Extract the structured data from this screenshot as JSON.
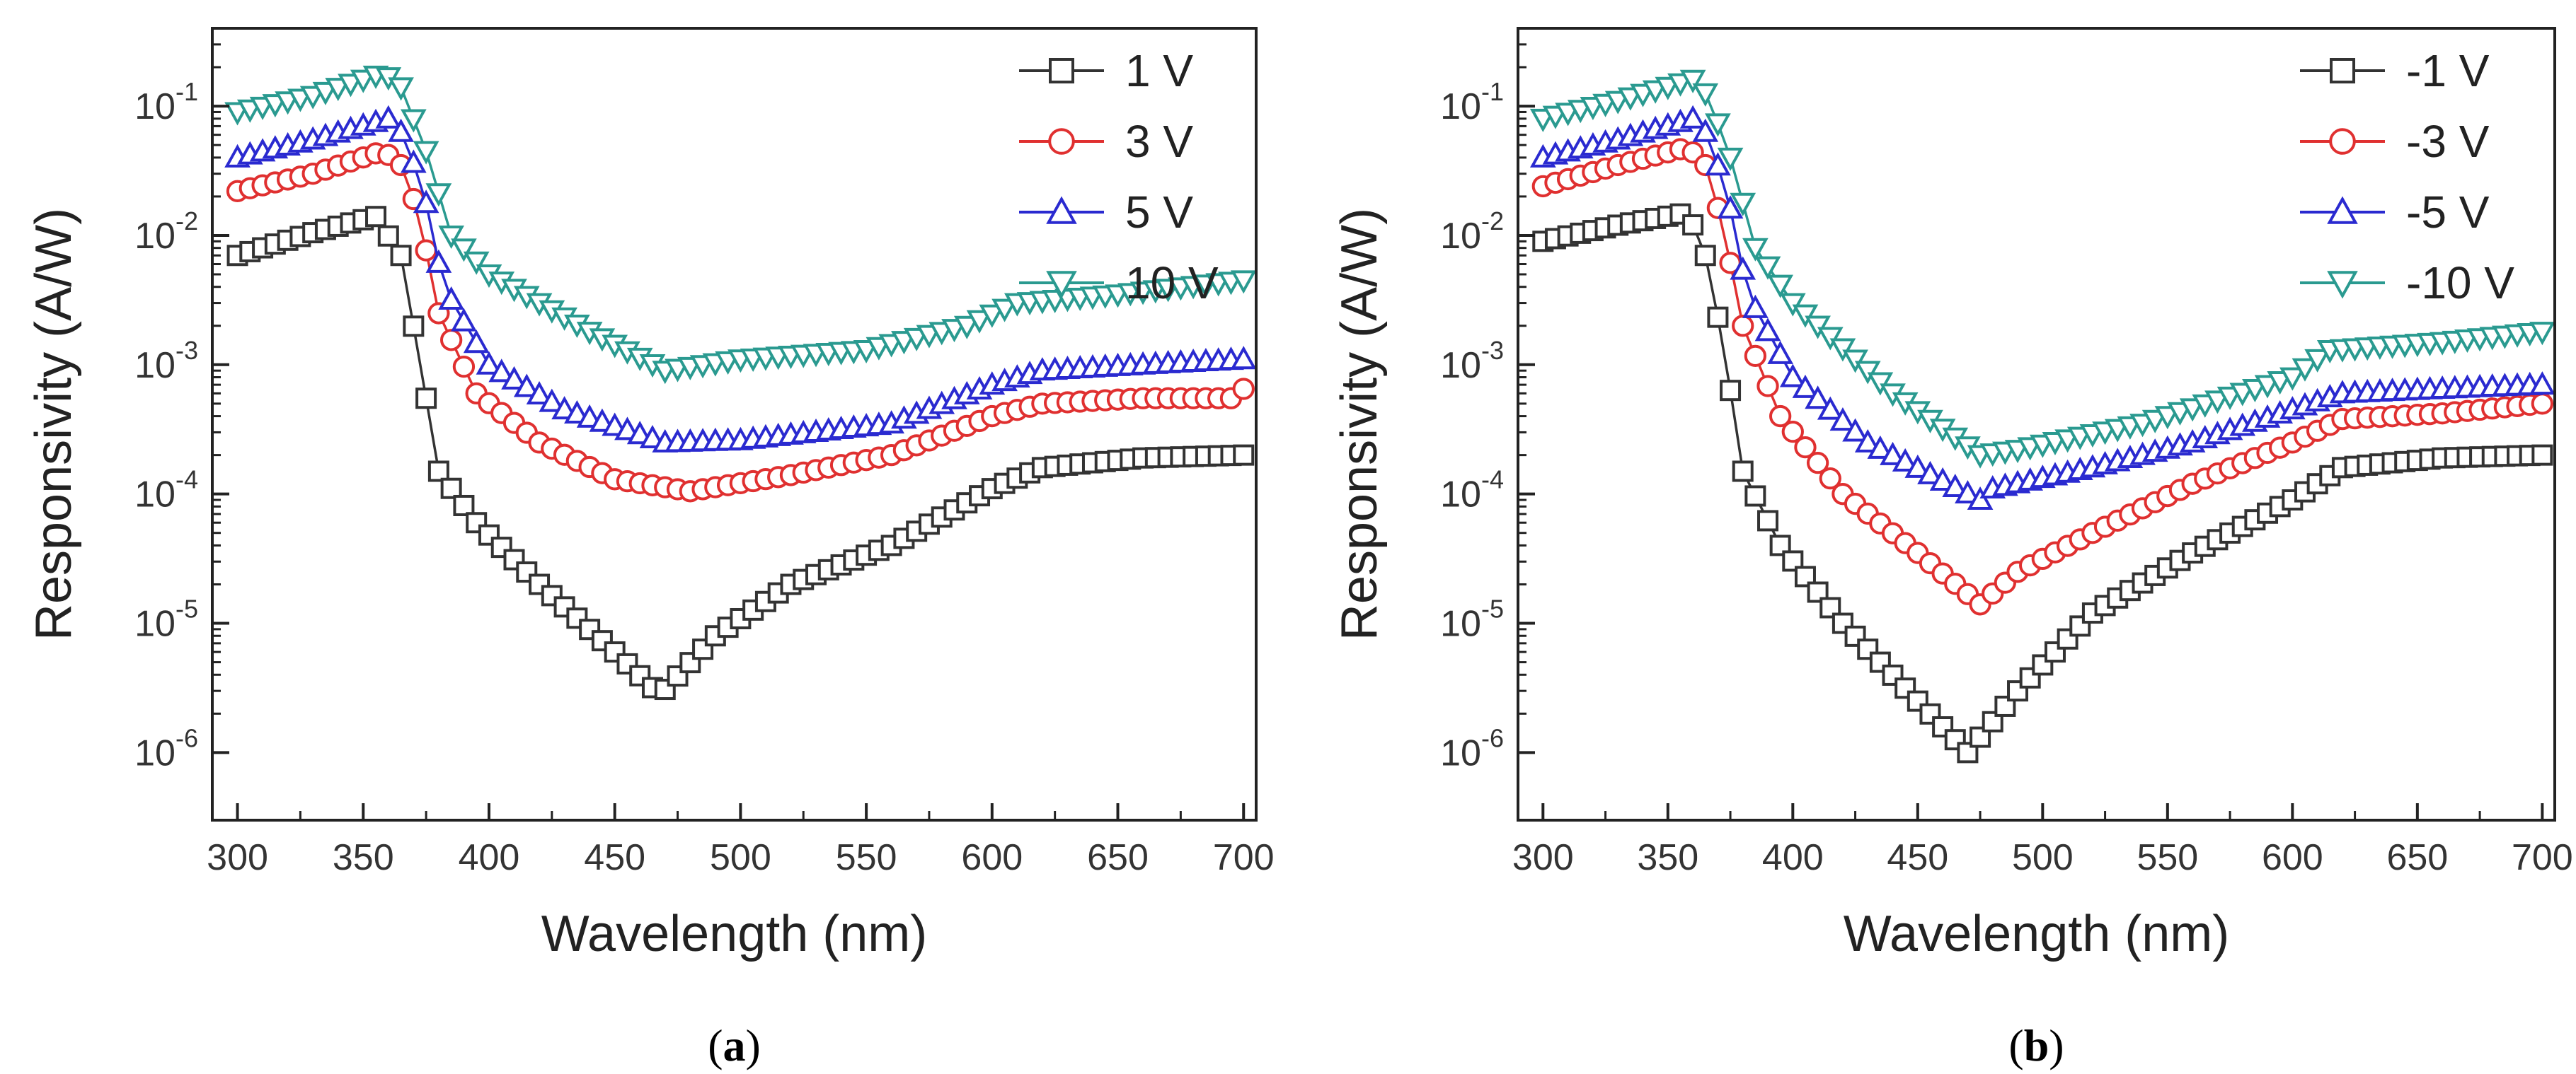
{
  "chart_data": [
    {
      "type": "line",
      "panel_label": "a",
      "xlabel": "Wavelength (nm)",
      "ylabel": "Responsivity (A/W)",
      "yscale": "log",
      "xlim": [
        290,
        705
      ],
      "ylim": [
        3e-07,
        0.4
      ],
      "xticks": [
        "300",
        "350",
        "400",
        "450",
        "500",
        "550",
        "600",
        "650",
        "700"
      ],
      "yticks": [
        {
          "value": 1e-06,
          "mant": "10",
          "exp": "-6"
        },
        {
          "value": 1e-05,
          "mant": "10",
          "exp": "-5"
        },
        {
          "value": 0.0001,
          "mant": "10",
          "exp": "-4"
        },
        {
          "value": 0.001,
          "mant": "10",
          "exp": "-3"
        },
        {
          "value": 0.01,
          "mant": "10",
          "exp": "-2"
        },
        {
          "value": 0.1,
          "mant": "10",
          "exp": "-1"
        }
      ],
      "legend_position": "top-right",
      "series": [
        {
          "name": "1 V",
          "color": "#333333",
          "marker": "square",
          "x": [
            300,
            330,
            355,
            365,
            372,
            380,
            395,
            420,
            450,
            468,
            490,
            520,
            560,
            600,
            620,
            660,
            700
          ],
          "y": [
            0.007,
            0.0105,
            0.014,
            0.007,
            0.0012,
            0.00015,
            6e-05,
            2e-05,
            6e-06,
            2.8e-06,
            8e-06,
            2e-05,
            4e-05,
            0.00011,
            0.00016,
            0.00019,
            0.0002
          ]
        },
        {
          "name": "3 V",
          "color": "#e03030",
          "marker": "circle",
          "x": [
            300,
            330,
            358,
            365,
            372,
            380,
            395,
            420,
            450,
            480,
            520,
            560,
            600,
            620,
            660,
            695,
            700
          ],
          "y": [
            0.022,
            0.03,
            0.045,
            0.035,
            0.015,
            0.0025,
            0.0006,
            0.00025,
            0.00013,
            0.000105,
            0.00014,
            0.0002,
            0.0004,
            0.0005,
            0.00055,
            0.00055,
            0.00065
          ]
        },
        {
          "name": "5 V",
          "color": "#2a2ad0",
          "marker": "triangle-up",
          "x": [
            300,
            330,
            360,
            366,
            374,
            382,
            400,
            430,
            470,
            500,
            560,
            600,
            620,
            660,
            700
          ],
          "y": [
            0.04,
            0.055,
            0.08,
            0.06,
            0.022,
            0.004,
            0.001,
            0.00045,
            0.00025,
            0.00026,
            0.00035,
            0.0007,
            0.0009,
            0.001,
            0.0011
          ]
        },
        {
          "name": "10 V",
          "color": "#2a9a90",
          "marker": "triangle-down",
          "x": [
            300,
            330,
            358,
            365,
            375,
            385,
            400,
            440,
            470,
            500,
            550,
            590,
            610,
            650,
            700
          ],
          "y": [
            0.09,
            0.12,
            0.18,
            0.14,
            0.045,
            0.01,
            0.005,
            0.0018,
            0.0009,
            0.0011,
            0.0013,
            0.002,
            0.003,
            0.0035,
            0.0045
          ]
        }
      ]
    },
    {
      "type": "line",
      "panel_label": "b",
      "xlabel": "Wavelength (nm)",
      "ylabel": "Responsivity (A/W)",
      "yscale": "log",
      "xlim": [
        290,
        705
      ],
      "ylim": [
        3e-07,
        0.4
      ],
      "xticks": [
        "300",
        "350",
        "400",
        "450",
        "500",
        "550",
        "600",
        "650",
        "700"
      ],
      "yticks": [
        {
          "value": 1e-06,
          "mant": "10",
          "exp": "-6"
        },
        {
          "value": 1e-05,
          "mant": "10",
          "exp": "-5"
        },
        {
          "value": 0.0001,
          "mant": "10",
          "exp": "-4"
        },
        {
          "value": 0.001,
          "mant": "10",
          "exp": "-3"
        },
        {
          "value": 0.01,
          "mant": "10",
          "exp": "-2"
        },
        {
          "value": 0.1,
          "mant": "10",
          "exp": "-1"
        }
      ],
      "legend_position": "top-right",
      "series": [
        {
          "name": "-1 V",
          "color": "#333333",
          "marker": "square",
          "x": [
            300,
            330,
            358,
            365,
            372,
            380,
            395,
            420,
            450,
            470,
            490,
            520,
            560,
            600,
            620,
            660,
            700
          ],
          "y": [
            0.009,
            0.012,
            0.015,
            0.007,
            0.0015,
            0.00015,
            4e-05,
            1e-05,
            2.5e-06,
            1e-06,
            3e-06,
            1.2e-05,
            3.5e-05,
            9e-05,
            0.00016,
            0.00019,
            0.0002
          ]
        },
        {
          "name": "-3 V",
          "color": "#e03030",
          "marker": "circle",
          "x": [
            300,
            330,
            358,
            365,
            372,
            380,
            395,
            420,
            450,
            475,
            490,
            520,
            560,
            600,
            620,
            660,
            700
          ],
          "y": [
            0.024,
            0.035,
            0.048,
            0.035,
            0.012,
            0.002,
            0.0004,
            0.0001,
            3.5e-05,
            1.4e-05,
            2.5e-05,
            5e-05,
            0.00012,
            0.00025,
            0.00038,
            0.00042,
            0.0005
          ]
        },
        {
          "name": "-5 V",
          "color": "#2a2ad0",
          "marker": "triangle-up",
          "x": [
            300,
            330,
            360,
            366,
            374,
            382,
            400,
            430,
            475,
            480,
            520,
            560,
            600,
            620,
            660,
            700
          ],
          "y": [
            0.04,
            0.055,
            0.08,
            0.06,
            0.02,
            0.0035,
            0.0008,
            0.00025,
            9e-05,
            0.00011,
            0.00016,
            0.00025,
            0.00045,
            0.0006,
            0.00065,
            0.0007
          ]
        },
        {
          "name": "-10 V",
          "color": "#2a9a90",
          "marker": "triangle-down",
          "x": [
            300,
            330,
            360,
            366,
            375,
            385,
            400,
            440,
            475,
            490,
            540,
            600,
            615,
            660,
            700
          ],
          "y": [
            0.08,
            0.11,
            0.16,
            0.12,
            0.04,
            0.008,
            0.003,
            0.0006,
            0.0002,
            0.00022,
            0.00035,
            0.0008,
            0.0013,
            0.0015,
            0.0018
          ]
        }
      ]
    }
  ]
}
